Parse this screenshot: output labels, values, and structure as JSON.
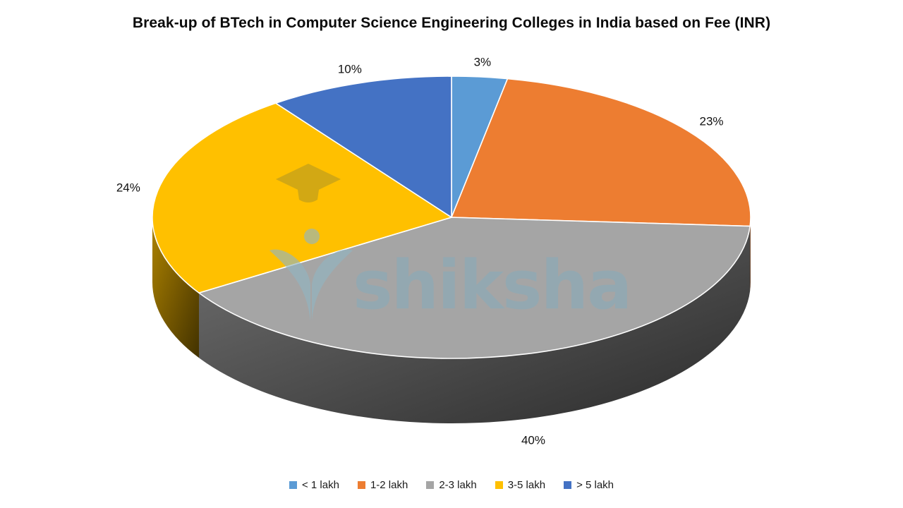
{
  "title": "Break-up of BTech in Computer Science Engineering Colleges in India based on Fee (INR)",
  "watermark": {
    "text": "shiksha",
    "text_color": "#8bacba",
    "logo_color": "#93b6c4",
    "cap_color": "#bd9d1e"
  },
  "chart_data": {
    "type": "pie",
    "style": "3d",
    "title": "Break-up of BTech in Computer Science Engineering Colleges in India based on Fee (INR)",
    "direction": "clockwise",
    "start_angle_deg": 0,
    "legend_position": "bottom",
    "series": [
      {
        "label": "< 1 lakh",
        "value": 3,
        "data_label": "3%",
        "color": "#5B9BD5"
      },
      {
        "label": "1-2 lakh",
        "value": 23,
        "data_label": "23%",
        "color": "#ED7D31"
      },
      {
        "label": "2-3 lakh",
        "value": 40,
        "data_label": "40%",
        "color": "#A5A5A5"
      },
      {
        "label": "3-5 lakh",
        "value": 24,
        "data_label": "24%",
        "color": "#FFC000"
      },
      {
        "label": "> 5 lakh",
        "value": 10,
        "data_label": "10%",
        "color": "#4472C4"
      }
    ]
  }
}
